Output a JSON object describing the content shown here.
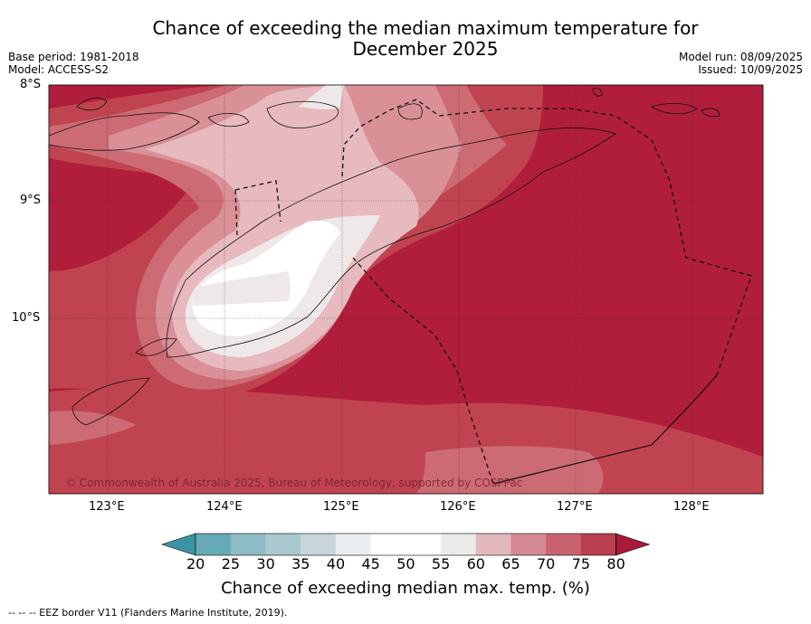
{
  "title_line1": "Chance of exceeding the median maximum temperature for",
  "title_line2": "December 2025",
  "base_period": "Base period: 1981-2018",
  "model": "Model: ACCESS-S2",
  "model_run": "Model run: 08/09/2025",
  "issued": "Issued: 10/09/2025",
  "copyright": "© Commonwealth of Australia 2025, Bureau of Meteorology, supported by COSPPac",
  "lat_labels": [
    "8°S",
    "9°S",
    "10°S"
  ],
  "lon_labels": [
    "123°E",
    "124°E",
    "125°E",
    "126°E",
    "127°E",
    "128°E"
  ],
  "colorbar": {
    "ticks": [
      "20",
      "25",
      "30",
      "35",
      "40",
      "45",
      "50",
      "55",
      "60",
      "65",
      "70",
      "75",
      "80"
    ],
    "colors": [
      "#3b94a3",
      "#66aab8",
      "#8dbcc6",
      "#a9c9cf",
      "#c9d6d9",
      "#e9eef0",
      "#ffffff",
      "#ffffff",
      "#ecebeb",
      "#e2b8bf",
      "#d68a95",
      "#c9636f",
      "#b9404f",
      "#a81a38"
    ],
    "title": "Chance of exceeding median max. temp. (%)"
  },
  "footer": "--  --  -- EEZ border V11 (Flanders Marine Institute, 2019).",
  "colors": {
    "c80": "#b01e3b",
    "c75": "#c0444f",
    "c70": "#cc6b73",
    "c65": "#d99197",
    "c60": "#e6babe",
    "c55": "#efe8e8",
    "c50": "#ffffff"
  }
}
